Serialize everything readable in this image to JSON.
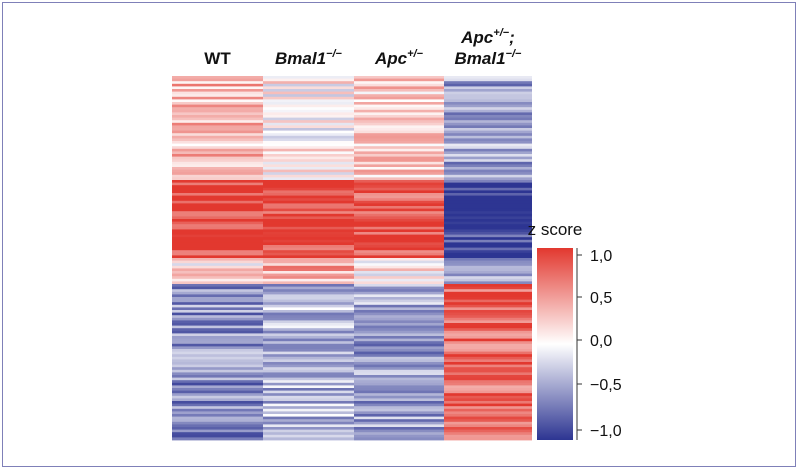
{
  "chart_data": {
    "type": "heatmap",
    "columns": [
      {
        "line1": "WT",
        "line2": "",
        "sup": "",
        "italic": false
      },
      {
        "line1": "Bmal1",
        "sup": "−/−",
        "line2": "",
        "italic": true
      },
      {
        "line1": "Apc",
        "sup": "+/−",
        "line2": "",
        "italic": true
      },
      {
        "line1": "Apc",
        "sup": "+/−",
        "suffix": ";",
        "line2": "Bmal1",
        "sup2": "−/−",
        "italic": true
      }
    ],
    "n_rows": 140,
    "row_blocks": [
      {
        "rows": [
          0,
          40
        ],
        "z": [
          0.35,
          0.05,
          0.25,
          -0.45
        ]
      },
      {
        "rows": [
          40,
          70
        ],
        "z": [
          0.95,
          0.95,
          0.85,
          -0.95
        ]
      },
      {
        "rows": [
          70,
          80
        ],
        "z": [
          0.15,
          0.4,
          0.1,
          -0.4
        ]
      },
      {
        "rows": [
          80,
          140
        ],
        "z": [
          -0.55,
          -0.35,
          -0.45,
          0.75
        ]
      }
    ],
    "colorbar": {
      "title": "z score",
      "ticks": [
        "1,0",
        "0,5",
        "0,0",
        "−0,5",
        "−1,0"
      ],
      "range": [
        -1.0,
        1.0
      ]
    },
    "colors": {
      "high": "#e2382f",
      "mid": "#ffffff",
      "low": "#2d3592"
    }
  }
}
